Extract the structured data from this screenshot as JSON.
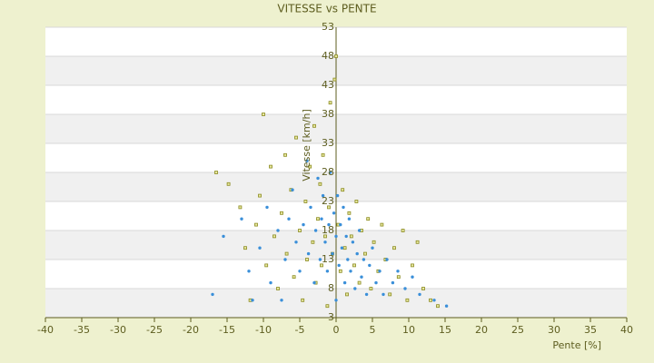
{
  "chart_data": {
    "type": "scatter",
    "title": "VITESSE vs PENTE",
    "x_label": "Pente [%]",
    "y_label": "Vitesse [km/h]",
    "xlim": [
      -40,
      40
    ],
    "xticks": [
      -40,
      -35,
      -30,
      -25,
      -20,
      -15,
      -10,
      -5,
      0,
      5,
      10,
      15,
      20,
      25,
      30,
      35,
      40
    ],
    "ylim": [
      3,
      53
    ],
    "yticks": [
      3,
      8,
      13,
      18,
      23,
      28,
      33,
      38,
      43,
      48,
      53
    ],
    "grid": true,
    "series": [
      {
        "color": "#8a8a1e",
        "x": [
          -16.5,
          -14.8,
          -13.2,
          -12.5,
          -11.8,
          -11,
          -10,
          -10.5,
          -9.6,
          -9,
          -8.5,
          -8,
          -7.5,
          -7,
          -6.8,
          -6.2,
          -5.8,
          -5.5,
          -5,
          -4.6,
          -4.2,
          -4,
          -3.6,
          -3.2,
          -3,
          -2.8,
          -2.5,
          -2.2,
          -2,
          -1.8,
          -1.5,
          -1.2,
          -1,
          -0.8,
          -0.5,
          -0.2,
          0,
          0.3,
          0.6,
          0.9,
          1.2,
          1.5,
          1.8,
          2.1,
          2.5,
          2.8,
          3.2,
          3.5,
          4,
          4.4,
          4.8,
          5.2,
          5.8,
          6.3,
          6.8,
          7.4,
          8,
          8.6,
          9.2,
          9.8,
          10.5,
          11.2,
          12,
          13,
          14
        ],
        "values": [
          28,
          26,
          22,
          15,
          6,
          19,
          38,
          24,
          12,
          29,
          17,
          8,
          21,
          31,
          14,
          25,
          10,
          34,
          18,
          6,
          23,
          13,
          29,
          16,
          36,
          9,
          20,
          26,
          12,
          31,
          17,
          5,
          22,
          40,
          14,
          44,
          48,
          19,
          11,
          25,
          15,
          7,
          21,
          17,
          12,
          23,
          9,
          18,
          14,
          20,
          8,
          16,
          11,
          19,
          13,
          7,
          15,
          10,
          18,
          6,
          12,
          16,
          8,
          6,
          5
        ]
      },
      {
        "color": "#3a8fd9",
        "x": [
          -17,
          -15.5,
          -13,
          -12,
          -11.5,
          -10.5,
          -9.5,
          -9,
          -8,
          -7.5,
          -7,
          -6.5,
          -6,
          -5.5,
          -5,
          -4.5,
          -4,
          -3.8,
          -3.5,
          -3,
          -2.8,
          -2.5,
          -2.2,
          -2,
          -1.8,
          -1.5,
          -1.2,
          -1,
          -0.8,
          -0.5,
          -0.3,
          0,
          0,
          0.2,
          0.4,
          0.6,
          0.8,
          1,
          1.2,
          1.4,
          1.6,
          1.8,
          2,
          2.3,
          2.6,
          2.9,
          3.2,
          3.5,
          3.8,
          4.2,
          4.6,
          5,
          5.5,
          6,
          6.5,
          7,
          7.8,
          8.5,
          9.5,
          10.5,
          11.5,
          13.5,
          15.2
        ],
        "values": [
          7,
          17,
          20,
          11,
          6,
          15,
          22,
          9,
          18,
          6,
          13,
          20,
          25,
          16,
          11,
          19,
          30,
          14,
          22,
          9,
          18,
          27,
          13,
          20,
          24,
          16,
          11,
          19,
          28,
          14,
          21,
          17,
          6,
          24,
          12,
          19,
          15,
          22,
          9,
          17,
          13,
          20,
          11,
          16,
          8,
          14,
          18,
          10,
          13,
          7,
          12,
          15,
          9,
          11,
          7,
          13,
          9,
          11,
          8,
          10,
          7,
          6,
          5
        ]
      }
    ]
  }
}
